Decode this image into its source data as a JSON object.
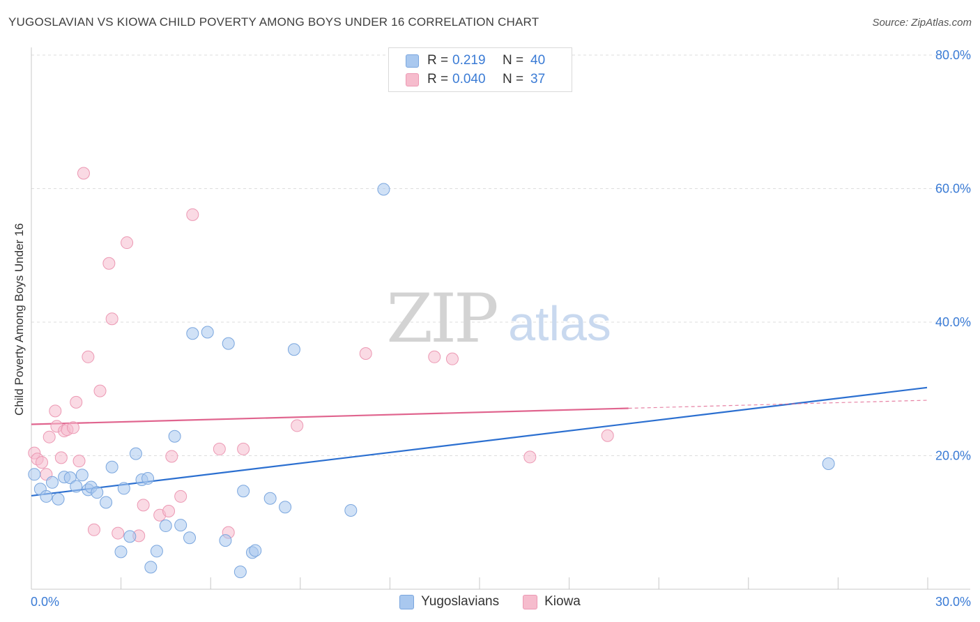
{
  "header": {
    "title": "YUGOSLAVIAN VS KIOWA CHILD POVERTY AMONG BOYS UNDER 16 CORRELATION CHART",
    "source": "Source: ZipAtlas.com"
  },
  "legend": {
    "series": [
      {
        "r_label": "R =",
        "r_value": "0.219",
        "n_label": "N =",
        "n_value": "40"
      },
      {
        "r_label": "R =",
        "r_value": "0.040",
        "n_label": "N =",
        "n_value": "37"
      }
    ]
  },
  "bottom_legend": [
    "Yugoslavians",
    "Kiowa"
  ],
  "watermark": {
    "zip": "ZIP",
    "atlas": "atlas"
  },
  "colors": {
    "blue_fill": "#a9c8ef",
    "blue_stroke": "#7aa6de",
    "blue_line": "#2b6fd0",
    "pink_fill": "#f6bccd",
    "pink_stroke": "#ec98b3",
    "pink_line": "#e0648e",
    "axis_text": "#3a7bd5",
    "grid": "#dddddd"
  },
  "chart_data": {
    "type": "scatter",
    "title": "YUGOSLAVIAN VS KIOWA CHILD POVERTY AMONG BOYS UNDER 16 CORRELATION CHART",
    "xlabel": "",
    "ylabel": "Child Poverty Among Boys Under 16",
    "xlim": [
      0,
      30
    ],
    "ylim": [
      0,
      80
    ],
    "x_tick_labels": [
      "0.0%",
      "30.0%"
    ],
    "y_ticks": [
      20,
      40,
      60,
      80
    ],
    "y_tick_labels": [
      "20.0%",
      "40.0%",
      "60.0%",
      "80.0%"
    ],
    "grid": true,
    "series": [
      {
        "name": "Yugoslavians",
        "r": 0.219,
        "n": 40,
        "trend": {
          "x0": 0,
          "y0": 14.0,
          "x1": 30,
          "y1": 30.2,
          "dashed_from": null
        },
        "points": [
          [
            0.1,
            17.2
          ],
          [
            0.3,
            15.0
          ],
          [
            0.5,
            13.9
          ],
          [
            0.7,
            16.0
          ],
          [
            0.9,
            13.5
          ],
          [
            1.1,
            16.8
          ],
          [
            1.3,
            16.7
          ],
          [
            1.5,
            15.4
          ],
          [
            1.7,
            17.1
          ],
          [
            1.9,
            14.9
          ],
          [
            2.0,
            15.3
          ],
          [
            2.2,
            14.5
          ],
          [
            2.5,
            13.0
          ],
          [
            2.7,
            18.3
          ],
          [
            3.0,
            5.6
          ],
          [
            3.1,
            15.1
          ],
          [
            3.3,
            7.9
          ],
          [
            3.5,
            20.3
          ],
          [
            3.7,
            16.4
          ],
          [
            3.9,
            16.6
          ],
          [
            4.0,
            3.3
          ],
          [
            4.2,
            5.7
          ],
          [
            4.5,
            9.5
          ],
          [
            4.8,
            22.9
          ],
          [
            5.0,
            9.6
          ],
          [
            5.3,
            7.7
          ],
          [
            5.4,
            38.3
          ],
          [
            5.9,
            38.5
          ],
          [
            6.5,
            7.3
          ],
          [
            6.6,
            36.8
          ],
          [
            7.0,
            2.6
          ],
          [
            7.1,
            14.7
          ],
          [
            7.4,
            5.5
          ],
          [
            7.5,
            5.8
          ],
          [
            8.0,
            13.6
          ],
          [
            8.5,
            12.3
          ],
          [
            8.8,
            35.9
          ],
          [
            10.7,
            11.8
          ],
          [
            11.8,
            59.9
          ],
          [
            26.7,
            18.8
          ]
        ]
      },
      {
        "name": "Kiowa",
        "r": 0.04,
        "n": 37,
        "trend": {
          "x0": 0,
          "y0": 24.7,
          "x1": 30,
          "y1": 28.3,
          "dashed_from": 20.0
        },
        "points": [
          [
            0.1,
            20.4
          ],
          [
            0.2,
            19.5
          ],
          [
            0.35,
            19.0
          ],
          [
            0.5,
            17.2
          ],
          [
            0.6,
            22.8
          ],
          [
            0.8,
            26.7
          ],
          [
            0.85,
            24.4
          ],
          [
            1.0,
            19.7
          ],
          [
            1.1,
            23.7
          ],
          [
            1.2,
            23.9
          ],
          [
            1.4,
            24.2
          ],
          [
            1.5,
            28.0
          ],
          [
            1.6,
            19.2
          ],
          [
            1.75,
            62.3
          ],
          [
            1.9,
            34.8
          ],
          [
            2.1,
            8.9
          ],
          [
            2.3,
            29.7
          ],
          [
            2.6,
            48.8
          ],
          [
            2.7,
            40.5
          ],
          [
            2.9,
            8.4
          ],
          [
            3.2,
            51.9
          ],
          [
            3.6,
            8.0
          ],
          [
            3.75,
            12.6
          ],
          [
            4.3,
            11.1
          ],
          [
            4.6,
            11.7
          ],
          [
            4.7,
            19.9
          ],
          [
            5.0,
            13.9
          ],
          [
            5.4,
            56.1
          ],
          [
            6.3,
            21.0
          ],
          [
            6.6,
            8.5
          ],
          [
            7.1,
            21.0
          ],
          [
            8.9,
            24.5
          ],
          [
            11.2,
            35.3
          ],
          [
            13.5,
            34.8
          ],
          [
            14.1,
            34.5
          ],
          [
            16.7,
            19.8
          ],
          [
            19.3,
            23.0
          ]
        ]
      }
    ]
  }
}
